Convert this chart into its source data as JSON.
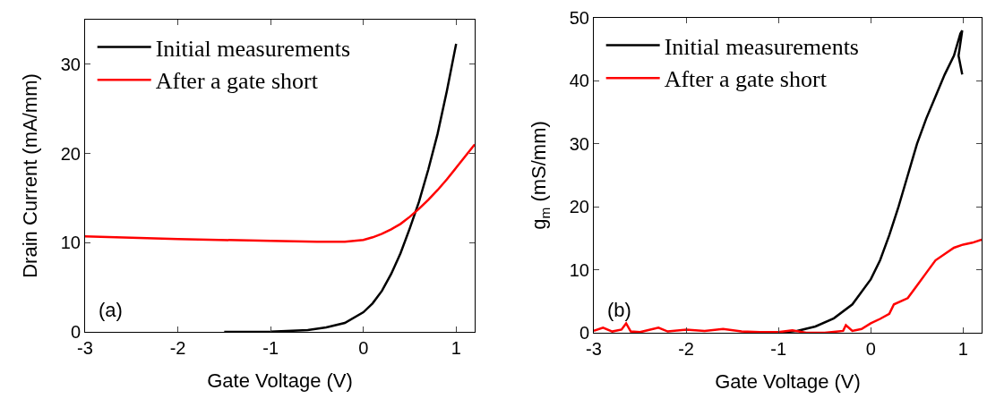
{
  "chart_data": [
    {
      "type": "line",
      "xlabel": "Gate Voltage (V)",
      "ylabel": "Drain Current (mA/mm)",
      "xlim": [
        -3,
        1.2
      ],
      "xticks": [
        -3,
        -2,
        -1,
        0,
        1
      ],
      "ylim": [
        0,
        35
      ],
      "yticks": [
        0,
        10,
        20,
        30
      ],
      "grid": false,
      "legend": "top left",
      "annotations": [
        "(a)"
      ],
      "series": [
        {
          "name": "Initial measurements",
          "color": "#000000",
          "x": [
            -1.5,
            -1,
            -0.6,
            -0.4,
            -0.2,
            0,
            0.1,
            0.2,
            0.3,
            0.4,
            0.5,
            0.6,
            0.7,
            0.8,
            0.9,
            1
          ],
          "values": [
            0,
            0.02,
            0.2,
            0.5,
            1.0,
            2.2,
            3.2,
            4.6,
            6.5,
            8.8,
            11.6,
            14.6,
            18.2,
            22.2,
            27,
            32.3
          ]
        },
        {
          "name": "After a gate short",
          "color": "#ff0000",
          "x": [
            -3,
            -2,
            -1,
            -0.5,
            -0.2,
            0,
            0.1,
            0.2,
            0.3,
            0.4,
            0.5,
            0.6,
            0.7,
            0.8,
            0.9,
            1.0,
            1.1,
            1.2
          ],
          "values": [
            10.7,
            10.4,
            10.2,
            10.1,
            10.1,
            10.3,
            10.6,
            11.0,
            11.5,
            12.1,
            12.9,
            13.8,
            14.8,
            15.9,
            17.1,
            18.4,
            19.7,
            21.0
          ]
        }
      ]
    },
    {
      "type": "line",
      "xlabel": "Gate Voltage (V)",
      "ylabel": "g$_{m}$ (mS/mm)",
      "xlim": [
        -3,
        1.2
      ],
      "xticks": [
        -3,
        -2,
        -1,
        0,
        1
      ],
      "ylim": [
        0,
        50
      ],
      "yticks": [
        0,
        10,
        20,
        30,
        40,
        50
      ],
      "grid": false,
      "legend": "top left",
      "annotations": [
        "(b)"
      ],
      "series": [
        {
          "name": "Initial measurements",
          "color": "#000000",
          "x": [
            -1,
            -0.8,
            -0.6,
            -0.4,
            -0.2,
            0,
            0.1,
            0.2,
            0.3,
            0.4,
            0.5,
            0.6,
            0.7,
            0.8,
            0.9,
            0.97,
            0.99,
            0.95,
            0.99
          ],
          "values": [
            0,
            0.3,
            1,
            2.3,
            4.5,
            8.5,
            11.5,
            15.5,
            20,
            25,
            30,
            34,
            37.5,
            41,
            44,
            47.5,
            48,
            44,
            41
          ]
        },
        {
          "name": "After a gate short",
          "color": "#ff0000",
          "x": [
            -3,
            -2.9,
            -2.8,
            -2.7,
            -2.65,
            -2.6,
            -2.5,
            -2.3,
            -2.2,
            -2,
            -1.8,
            -1.6,
            -1.4,
            -1.2,
            -1,
            -0.85,
            -0.7,
            -0.5,
            -0.3,
            -0.27,
            -0.2,
            -0.1,
            0,
            0.1,
            0.2,
            0.25,
            0.4,
            0.5,
            0.6,
            0.7,
            0.8,
            0.9,
            1.0,
            1.1,
            1.2
          ],
          "values": [
            0.3,
            0.8,
            0.2,
            0.5,
            1.5,
            0.2,
            0.1,
            0.8,
            0.2,
            0.5,
            0.3,
            0.6,
            0.2,
            0.1,
            0.1,
            0.4,
            0,
            0,
            0.3,
            1.2,
            0.3,
            0.6,
            1.5,
            2.2,
            3,
            4.5,
            5.5,
            7.5,
            9.5,
            11.5,
            12.5,
            13.5,
            14,
            14.3,
            14.8
          ]
        }
      ]
    }
  ]
}
